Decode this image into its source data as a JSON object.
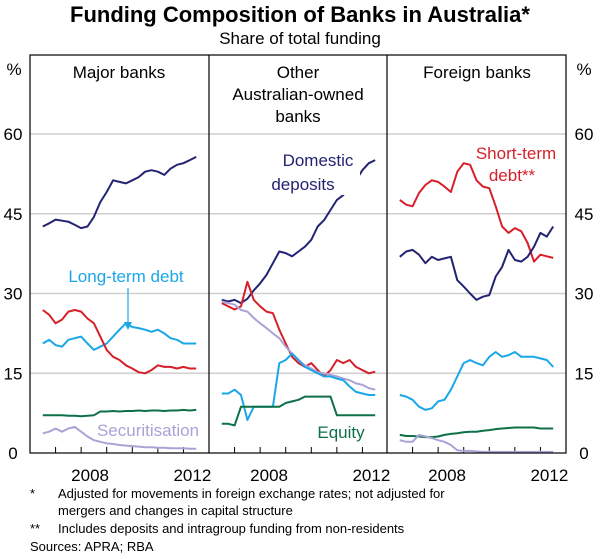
{
  "chart_data": {
    "type": "line",
    "title": "Funding Composition of Banks in Australia*",
    "subtitle": "Share of total funding",
    "ylabel_left": "%",
    "ylabel_right": "%",
    "ylim": [
      0,
      70
    ],
    "yticks": [
      0,
      15,
      30,
      45,
      60
    ],
    "xlim": [
      2006,
      2013
    ],
    "xtick_labels": [
      "2008",
      "2012"
    ],
    "grid": true,
    "colors": {
      "domestic_deposits": "#232373",
      "short_term_debt": "#d71f2a",
      "long_term_debt": "#1aa7e8",
      "equity": "#0f7048",
      "securitisation": "#aaa3d6"
    },
    "x_start": 2006.5,
    "x_step": 0.25,
    "panels": [
      {
        "title_lines": [
          "Major banks"
        ],
        "series": [
          {
            "name": "Domestic deposits",
            "key": "domestic_deposits",
            "values": [
              42.6,
              43.2,
              43.9,
              43.7,
              43.5,
              42.9,
              42.3,
              42.6,
              44.4,
              47.2,
              49.1,
              51.3,
              51.0,
              50.7,
              51.3,
              51.9,
              52.9,
              53.2,
              52.9,
              52.3,
              53.5,
              54.2,
              54.5,
              55.1,
              55.7
            ]
          },
          {
            "name": "Long-term debt",
            "key": "long_term_debt",
            "values": [
              20.6,
              21.3,
              20.3,
              20.0,
              21.3,
              21.6,
              21.9,
              20.6,
              19.4,
              20.0,
              20.6,
              21.9,
              23.2,
              24.4,
              23.7,
              23.5,
              23.2,
              22.8,
              23.2,
              22.5,
              21.6,
              21.3,
              20.6,
              20.6,
              20.6
            ]
          },
          {
            "name": "Short-term debt",
            "key": "short_term_debt",
            "values": [
              26.9,
              26.0,
              24.4,
              25.1,
              26.6,
              26.9,
              26.6,
              25.3,
              24.4,
              21.9,
              19.4,
              18.1,
              17.5,
              16.5,
              15.9,
              15.2,
              15.0,
              15.6,
              16.5,
              16.2,
              16.2,
              15.9,
              16.2,
              15.9,
              15.9
            ]
          },
          {
            "name": "Equity",
            "key": "equity",
            "values": [
              7.1,
              7.1,
              7.1,
              7.1,
              7.0,
              7.0,
              6.9,
              7.0,
              7.1,
              7.8,
              7.8,
              7.9,
              7.8,
              7.9,
              7.9,
              8.0,
              7.9,
              8.0,
              8.0,
              7.9,
              8.0,
              8.0,
              8.1,
              8.0,
              8.1
            ]
          },
          {
            "name": "Securitisation",
            "key": "securitisation",
            "values": [
              3.7,
              4.0,
              4.6,
              4.0,
              4.6,
              4.9,
              4.0,
              3.1,
              2.4,
              2.1,
              1.8,
              1.7,
              1.5,
              1.4,
              1.3,
              1.2,
              1.1,
              1.1,
              1.0,
              1.0,
              0.9,
              0.9,
              0.9,
              0.8,
              0.8
            ]
          }
        ]
      },
      {
        "title_lines": [
          "Other",
          "Australian-owned",
          "banks"
        ],
        "series": [
          {
            "name": "Domestic deposits",
            "key": "domestic_deposits",
            "values": [
              28.8,
              28.5,
              28.8,
              28.2,
              29.0,
              30.6,
              31.9,
              33.5,
              35.7,
              37.9,
              37.6,
              37.0,
              37.9,
              38.8,
              40.1,
              42.6,
              43.8,
              45.7,
              47.6,
              48.5,
              49.8,
              51.3,
              53.2,
              54.5,
              55.1
            ]
          },
          {
            "name": "Short-term debt",
            "key": "short_term_debt",
            "values": [
              28.2,
              27.6,
              27.0,
              27.6,
              32.2,
              28.8,
              27.6,
              26.6,
              26.3,
              23.2,
              20.6,
              18.1,
              16.9,
              16.2,
              16.9,
              15.6,
              14.4,
              15.6,
              17.5,
              16.9,
              17.5,
              16.2,
              15.6,
              15.0,
              15.3
            ]
          },
          {
            "name": "Securitisation",
            "key": "securitisation",
            "values": [
              28.5,
              28.2,
              27.9,
              26.9,
              26.6,
              25.4,
              24.4,
              23.5,
              22.5,
              21.6,
              20.0,
              18.7,
              17.5,
              16.5,
              15.9,
              15.2,
              15.0,
              14.7,
              14.4,
              14.0,
              13.7,
              13.1,
              12.8,
              12.2,
              11.9
            ]
          },
          {
            "name": "Long-term debt",
            "key": "long_term_debt",
            "values": [
              11.2,
              11.2,
              11.9,
              10.9,
              6.2,
              8.7,
              8.7,
              8.7,
              8.7,
              16.9,
              17.5,
              18.7,
              17.5,
              16.2,
              15.6,
              15.0,
              14.4,
              14.4,
              14.0,
              13.7,
              12.5,
              11.5,
              11.2,
              10.9,
              10.9
            ]
          },
          {
            "name": "Equity",
            "key": "equity",
            "values": [
              5.5,
              5.5,
              5.2,
              8.7,
              8.7,
              8.7,
              8.7,
              8.7,
              8.7,
              8.7,
              9.4,
              9.7,
              10.0,
              10.6,
              10.6,
              10.6,
              10.6,
              10.6,
              7.1,
              7.1,
              7.1,
              7.1,
              7.1,
              7.1,
              7.1
            ]
          }
        ]
      },
      {
        "title_lines": [
          "Foreign banks"
        ],
        "series": [
          {
            "name": "Short-term debt**",
            "key": "short_term_debt",
            "values": [
              47.6,
              46.7,
              46.4,
              48.9,
              50.4,
              51.3,
              51.0,
              50.1,
              49.1,
              52.9,
              54.5,
              54.2,
              51.3,
              50.1,
              49.8,
              46.4,
              42.6,
              41.4,
              42.3,
              41.7,
              39.5,
              36.0,
              37.3,
              37.0,
              36.7
            ]
          },
          {
            "name": "Domestic deposits",
            "key": "domestic_deposits",
            "values": [
              36.9,
              37.9,
              38.2,
              37.3,
              35.7,
              36.9,
              36.3,
              36.6,
              36.9,
              32.5,
              31.3,
              30.0,
              28.8,
              29.4,
              29.7,
              33.2,
              35.0,
              38.2,
              36.3,
              36.0,
              36.9,
              38.8,
              41.4,
              40.7,
              42.6
            ]
          },
          {
            "name": "Long-term debt",
            "key": "long_term_debt",
            "values": [
              10.9,
              10.6,
              10.0,
              8.7,
              8.1,
              8.4,
              9.7,
              10.0,
              11.9,
              14.4,
              16.9,
              17.5,
              16.9,
              16.5,
              18.1,
              19.0,
              18.1,
              18.4,
              19.0,
              18.1,
              18.1,
              18.1,
              17.8,
              17.5,
              16.2
            ]
          },
          {
            "name": "Equity",
            "key": "equity",
            "values": [
              3.4,
              3.2,
              3.2,
              3.1,
              3.0,
              3.0,
              3.1,
              3.4,
              3.6,
              3.7,
              3.9,
              4.0,
              4.0,
              4.2,
              4.3,
              4.5,
              4.6,
              4.7,
              4.8,
              4.8,
              4.8,
              4.8,
              4.6,
              4.6,
              4.6
            ]
          },
          {
            "name": "Securitisation",
            "key": "securitisation",
            "values": [
              2.4,
              2.1,
              2.1,
              3.4,
              3.1,
              2.8,
              2.4,
              2.1,
              1.5,
              0.5,
              0.4,
              0.4,
              0.3,
              0.2,
              0.2,
              0.2,
              0.2,
              0.2,
              0.2,
              0.2,
              0.2,
              0.2,
              0.2,
              0.2,
              0.2
            ]
          }
        ]
      }
    ],
    "annotations": {
      "domestic_deposits": [
        "Domestic",
        "deposits"
      ],
      "long_term_debt": "Long-term debt",
      "securitisation": "Securitisation",
      "equity": "Equity",
      "short_term_debt": [
        "Short-term",
        "debt**"
      ]
    }
  },
  "footnotes": {
    "note1_marker": "*",
    "note1_line1": "Adjusted for movements in foreign exchange rates; not adjusted for",
    "note1_line2": "mergers and changes in capital structure",
    "note2_marker": "**",
    "note2_line1": "Includes deposits and intragroup funding from non-residents",
    "sources": "Sources: APRA; RBA"
  }
}
